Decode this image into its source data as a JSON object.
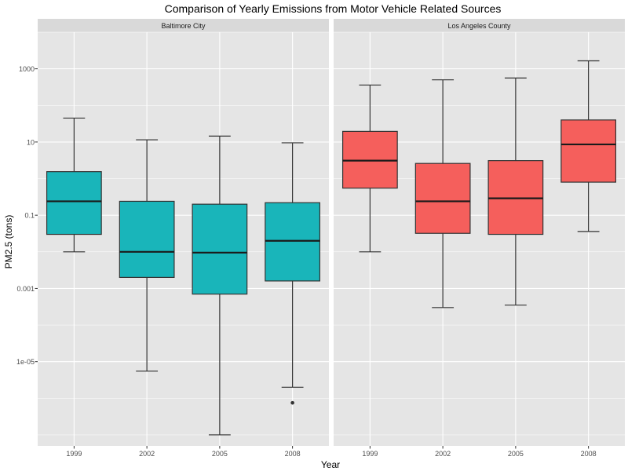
{
  "chart_data": {
    "type": "box",
    "title": "Comparison of Yearly Emissions from Motor Vehicle Related Sources",
    "xlabel": "Year",
    "ylabel": "PM2.5 (tons)",
    "y_scale": "log10",
    "ylim": [
      5e-08,
      10000
    ],
    "y_ticks": [
      {
        "value": 1e-05,
        "label": "1e-05"
      },
      {
        "value": 0.001,
        "label": "0.001"
      },
      {
        "value": 0.1,
        "label": "0.1"
      },
      {
        "value": 10,
        "label": "10"
      },
      {
        "value": 1000,
        "label": "1000"
      }
    ],
    "categories": [
      "1999",
      "2002",
      "2005",
      "2008"
    ],
    "grid": true,
    "colors": {
      "panel_bg": "#E5E5E5",
      "grid": "#FFFFFF",
      "strip_bg": "#D9D9D9",
      "box_stroke": "#333333",
      "axis_text": "#4D4D4D"
    },
    "panels": [
      {
        "name": "Baltimore City",
        "fill": "#19B5BA",
        "boxes": [
          {
            "category": "1999",
            "whisker_low": 0.01,
            "q1": 0.03,
            "median": 0.24,
            "q3": 1.55,
            "whisker_high": 45,
            "outliers": []
          },
          {
            "category": "2002",
            "whisker_low": 5.5e-06,
            "q1": 0.002,
            "median": 0.01,
            "q3": 0.24,
            "whisker_high": 11.5,
            "outliers": []
          },
          {
            "category": "2005",
            "whisker_low": 1e-07,
            "q1": 0.0007,
            "median": 0.0095,
            "q3": 0.2,
            "whisker_high": 14.5,
            "outliers": []
          },
          {
            "category": "2008",
            "whisker_low": 2e-06,
            "q1": 0.0016,
            "median": 0.02,
            "q3": 0.22,
            "whisker_high": 9.5,
            "outliers": [
              7.5e-07
            ]
          }
        ]
      },
      {
        "name": "Los Angeles County",
        "fill": "#F55F5C",
        "boxes": [
          {
            "category": "1999",
            "whisker_low": 0.01,
            "q1": 0.55,
            "median": 3.1,
            "q3": 19.5,
            "whisker_high": 360,
            "outliers": []
          },
          {
            "category": "2002",
            "whisker_low": 0.0003,
            "q1": 0.032,
            "median": 0.24,
            "q3": 2.6,
            "whisker_high": 500,
            "outliers": []
          },
          {
            "category": "2005",
            "whisker_low": 0.00035,
            "q1": 0.03,
            "median": 0.29,
            "q3": 3.1,
            "whisker_high": 560,
            "outliers": []
          },
          {
            "category": "2008",
            "whisker_low": 0.036,
            "q1": 0.8,
            "median": 8.6,
            "q3": 40,
            "whisker_high": 1650,
            "outliers": []
          }
        ]
      }
    ]
  }
}
